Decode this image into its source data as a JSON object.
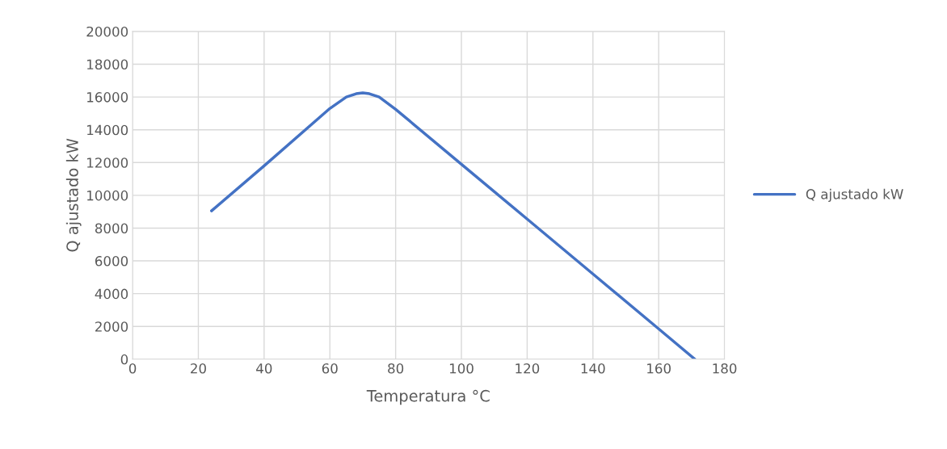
{
  "chart_data": {
    "type": "line",
    "xlabel": "Temperatura °C",
    "ylabel": "Q ajustado kW",
    "series": [
      {
        "name": "Q ajustado kW",
        "color": "#4472c4",
        "x": [
          24,
          40,
          60,
          65,
          68,
          70,
          72,
          75,
          80,
          100,
          120,
          140,
          160,
          171
        ],
        "values": [
          9050,
          11800,
          15300,
          16000,
          16200,
          16250,
          16200,
          16000,
          15250,
          11900,
          8550,
          5200,
          1850,
          0
        ]
      }
    ],
    "xlim": [
      0,
      180
    ],
    "xticks": [
      0,
      20,
      40,
      60,
      80,
      100,
      120,
      140,
      160,
      180
    ],
    "ylim": [
      0,
      20000
    ],
    "yticks": [
      0,
      2000,
      4000,
      6000,
      8000,
      10000,
      12000,
      14000,
      16000,
      18000,
      20000
    ],
    "grid": true,
    "legend": "right",
    "marker": "none",
    "line_style": "solid"
  }
}
